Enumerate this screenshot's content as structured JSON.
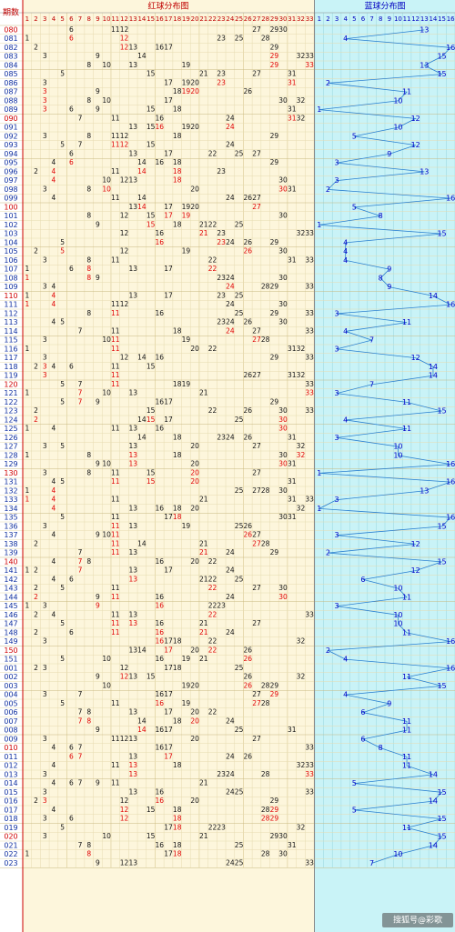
{
  "header": {
    "period_label": "期数",
    "red_title": "红球分布图",
    "blue_title": "蓝球分布图"
  },
  "red_columns": [
    1,
    2,
    3,
    4,
    5,
    6,
    7,
    8,
    9,
    10,
    11,
    12,
    13,
    14,
    15,
    16,
    17,
    18,
    19,
    20,
    21,
    22,
    23,
    24,
    25,
    26,
    27,
    28,
    29,
    30,
    31,
    32,
    33
  ],
  "blue_columns": [
    1,
    2,
    3,
    4,
    5,
    6,
    7,
    8,
    9,
    10,
    11,
    12,
    13,
    14,
    15,
    16
  ],
  "rows": [
    [
      "080",
      [
        6,
        11,
        12,
        27,
        29,
        30
      ],
      13
    ],
    [
      "081",
      [
        1,
        6,
        12,
        23,
        25,
        28
      ],
      4
    ],
    [
      "082",
      [
        2,
        12,
        13,
        16,
        17,
        29
      ],
      16
    ],
    [
      "083",
      [
        3,
        9,
        14,
        29,
        32,
        33
      ],
      15
    ],
    [
      "084",
      [
        8,
        10,
        13,
        19,
        29,
        33
      ],
      13
    ],
    [
      "085",
      [
        5,
        15,
        21,
        23,
        27,
        31
      ],
      15
    ],
    [
      "086",
      [
        3,
        17,
        19,
        20,
        23,
        31
      ],
      2
    ],
    [
      "087",
      [
        3,
        9,
        18,
        19,
        20,
        26
      ],
      11
    ],
    [
      "088",
      [
        3,
        8,
        10,
        17,
        30,
        32
      ],
      10
    ],
    [
      "089",
      [
        3,
        6,
        9,
        15,
        18,
        31
      ],
      1
    ],
    [
      "090",
      [
        7,
        11,
        16,
        24,
        31,
        32
      ],
      12
    ],
    [
      "091",
      [
        13,
        15,
        16,
        19,
        20,
        24
      ],
      10
    ],
    [
      "092",
      [
        3,
        8,
        11,
        12,
        18,
        29
      ],
      5
    ],
    [
      "093",
      [
        5,
        7,
        11,
        12,
        15,
        24
      ],
      12
    ],
    [
      "094",
      [
        6,
        13,
        17,
        22,
        25,
        27
      ],
      9
    ],
    [
      "095",
      [
        4,
        6,
        14,
        16,
        18,
        29
      ],
      3
    ],
    [
      "096",
      [
        2,
        4,
        11,
        14,
        18,
        23
      ],
      13
    ],
    [
      "097",
      [
        4,
        10,
        12,
        13,
        18,
        30
      ],
      3
    ],
    [
      "098",
      [
        3,
        8,
        10,
        20,
        30,
        31
      ],
      2
    ],
    [
      "099",
      [
        4,
        11,
        14,
        24,
        26,
        27
      ],
      16
    ],
    [
      "100",
      [
        13,
        14,
        17,
        19,
        20,
        27
      ],
      5
    ],
    [
      "101",
      [
        8,
        12,
        15,
        17,
        19,
        30
      ],
      8
    ],
    [
      "102",
      [
        9,
        15,
        18,
        21,
        22,
        25
      ],
      1
    ],
    [
      "103",
      [
        12,
        16,
        21,
        23,
        32,
        33
      ],
      15
    ],
    [
      "104",
      [
        5,
        16,
        23,
        24,
        26,
        29
      ],
      4
    ],
    [
      "105",
      [
        2,
        5,
        12,
        19,
        26,
        30
      ],
      4
    ],
    [
      "106",
      [
        3,
        8,
        11,
        22,
        31,
        33
      ],
      4
    ],
    [
      "107",
      [
        1,
        6,
        8,
        13,
        17,
        22
      ],
      9
    ],
    [
      "108",
      [
        1,
        8,
        9,
        23,
        24,
        30
      ],
      8
    ],
    [
      "109",
      [
        3,
        4,
        24,
        28,
        29,
        33
      ],
      9
    ],
    [
      "110",
      [
        1,
        4,
        13,
        17,
        23,
        25
      ],
      14
    ],
    [
      "111",
      [
        1,
        4,
        11,
        12,
        24,
        30
      ],
      16
    ],
    [
      "112",
      [
        8,
        11,
        16,
        25,
        29,
        33
      ],
      3
    ],
    [
      "113",
      [
        4,
        5,
        23,
        24,
        26,
        30
      ],
      11
    ],
    [
      "114",
      [
        7,
        11,
        18,
        24,
        27,
        33
      ],
      4
    ],
    [
      "115",
      [
        3,
        10,
        11,
        19,
        27,
        28
      ],
      7
    ],
    [
      "116",
      [
        1,
        11,
        20,
        22,
        31,
        32
      ],
      3
    ],
    [
      "117",
      [
        3,
        12,
        14,
        16,
        29,
        33
      ],
      12
    ],
    [
      "118",
      [
        2,
        3,
        4,
        6,
        11,
        15
      ],
      14
    ],
    [
      "119",
      [
        3,
        11,
        26,
        27,
        31,
        32
      ],
      14
    ],
    [
      "120",
      [
        5,
        7,
        11,
        18,
        19,
        33
      ],
      7
    ],
    [
      "121",
      [
        1,
        7,
        10,
        13,
        21,
        33
      ],
      3
    ],
    [
      "122",
      [
        5,
        7,
        9,
        16,
        17,
        29
      ],
      11
    ],
    [
      "123",
      [
        2,
        15,
        22,
        26,
        30,
        33
      ],
      15
    ],
    [
      "124",
      [
        2,
        14,
        15,
        17,
        25,
        30
      ],
      4
    ],
    [
      "125",
      [
        1,
        4,
        11,
        13,
        16,
        30
      ],
      11
    ],
    [
      "126",
      [
        14,
        18,
        23,
        24,
        26,
        31
      ],
      3
    ],
    [
      "127",
      [
        3,
        5,
        13,
        20,
        27,
        32
      ],
      10
    ],
    [
      "128",
      [
        1,
        8,
        13,
        18,
        30,
        32
      ],
      10
    ],
    [
      "129",
      [
        9,
        10,
        13,
        20,
        30,
        31
      ],
      16
    ],
    [
      "130",
      [
        3,
        8,
        11,
        15,
        20,
        27
      ],
      1
    ],
    [
      "131",
      [
        4,
        5,
        11,
        15,
        20,
        31
      ],
      16
    ],
    [
      "132",
      [
        1,
        4,
        25,
        27,
        28,
        30
      ],
      13
    ],
    [
      "133",
      [
        1,
        4,
        11,
        21,
        31,
        33
      ],
      3
    ],
    [
      "134",
      [
        4,
        13,
        16,
        18,
        20,
        32
      ],
      1
    ],
    [
      "135",
      [
        5,
        11,
        17,
        18,
        30,
        31
      ],
      16
    ],
    [
      "136",
      [
        3,
        11,
        13,
        19,
        25,
        26
      ],
      15
    ],
    [
      "137",
      [
        4,
        9,
        10,
        11,
        26,
        27
      ],
      3
    ],
    [
      "138",
      [
        2,
        11,
        14,
        21,
        27,
        28
      ],
      12
    ],
    [
      "139",
      [
        7,
        11,
        13,
        21,
        24,
        29
      ],
      2
    ],
    [
      "140",
      [
        4,
        7,
        8,
        16,
        20,
        22
      ],
      15
    ],
    [
      "141",
      [
        1,
        2,
        7,
        13,
        17,
        24
      ],
      12
    ],
    [
      "142",
      [
        4,
        6,
        13,
        21,
        22,
        25
      ],
      6
    ],
    [
      "143",
      [
        2,
        5,
        11,
        22,
        27,
        30
      ],
      10
    ],
    [
      "144",
      [
        2,
        9,
        11,
        16,
        24,
        30
      ],
      11
    ],
    [
      "145",
      [
        1,
        3,
        9,
        16,
        22,
        23
      ],
      3
    ],
    [
      "146",
      [
        2,
        4,
        11,
        13,
        22,
        33
      ],
      10
    ],
    [
      "147",
      [
        5,
        11,
        13,
        16,
        21,
        27
      ],
      10
    ],
    [
      "148",
      [
        2,
        6,
        11,
        16,
        21,
        24
      ],
      11
    ],
    [
      "149",
      [
        3,
        16,
        17,
        18,
        22,
        32
      ],
      16
    ],
    [
      "150",
      [
        13,
        14,
        17,
        20,
        22,
        26
      ],
      2
    ],
    [
      "151",
      [
        5,
        10,
        16,
        19,
        21,
        26
      ],
      4
    ],
    [
      "001",
      [
        2,
        3,
        12,
        17,
        18,
        25
      ],
      16
    ],
    [
      "002",
      [
        9,
        12,
        13,
        15,
        26,
        32
      ],
      11
    ],
    [
      "003",
      [
        10,
        19,
        20,
        26,
        28,
        29
      ],
      15
    ],
    [
      "004",
      [
        3,
        7,
        16,
        17,
        27,
        29
      ],
      4
    ],
    [
      "005",
      [
        5,
        11,
        16,
        19,
        27,
        28
      ],
      9
    ],
    [
      "006",
      [
        7,
        8,
        13,
        17,
        20,
        22
      ],
      6
    ],
    [
      "007",
      [
        7,
        8,
        14,
        18,
        20,
        24
      ],
      11
    ],
    [
      "008",
      [
        9,
        14,
        16,
        17,
        25,
        31
      ],
      11
    ],
    [
      "009",
      [
        3,
        11,
        12,
        13,
        20,
        27
      ],
      6
    ],
    [
      "010",
      [
        4,
        6,
        7,
        16,
        17,
        33
      ],
      8
    ],
    [
      "011",
      [
        6,
        7,
        13,
        17,
        24,
        26
      ],
      11
    ],
    [
      "012",
      [
        4,
        11,
        13,
        18,
        32,
        33
      ],
      11
    ],
    [
      "013",
      [
        3,
        13,
        23,
        24,
        28,
        33
      ],
      14
    ],
    [
      "014",
      [
        4,
        6,
        7,
        9,
        11,
        21
      ],
      5
    ],
    [
      "015",
      [
        3,
        13,
        16,
        24,
        25,
        33
      ],
      15
    ],
    [
      "016",
      [
        2,
        3,
        12,
        16,
        20,
        29
      ],
      14
    ],
    [
      "017",
      [
        4,
        12,
        15,
        18,
        28,
        29
      ],
      5
    ],
    [
      "018",
      [
        3,
        6,
        12,
        18,
        28,
        29
      ],
      15
    ],
    [
      "019",
      [
        5,
        17,
        18,
        22,
        23,
        32
      ],
      11
    ],
    [
      "020",
      [
        3,
        10,
        15,
        21,
        29,
        30
      ],
      15
    ],
    [
      "021",
      [
        7,
        8,
        16,
        18,
        25,
        31
      ],
      14
    ],
    [
      "022",
      [
        1,
        8,
        17,
        18,
        28,
        30
      ],
      10
    ],
    [
      "023",
      [
        9,
        12,
        13,
        24,
        25,
        33
      ],
      7
    ]
  ],
  "watermark": "搜狐号@彩歌"
}
